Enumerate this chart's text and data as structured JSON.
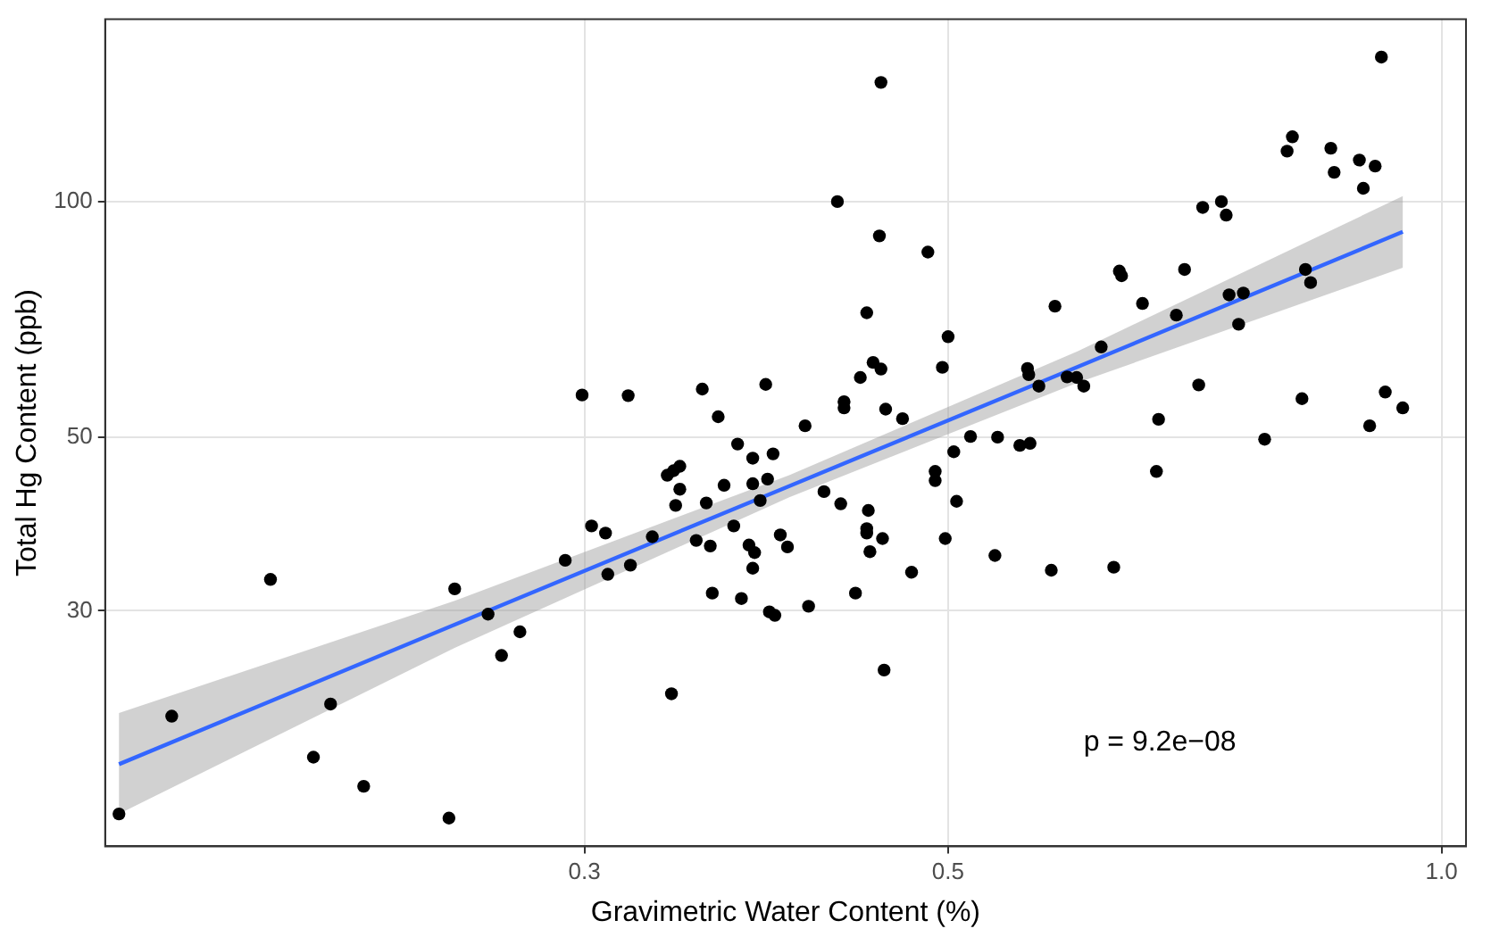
{
  "chart_data": {
    "type": "scatter",
    "xlabel": "Gravimetric Water Content (%)",
    "ylabel": "Total Hg Content (ppb)",
    "annotations": [
      "p = 9.2e−08"
    ],
    "log": "xy",
    "grid": true,
    "legend": false,
    "xlim": [
      0.153,
      1.035
    ],
    "xticks": [
      0.3,
      0.5,
      {
        "value": 1,
        "label": "1.0"
      }
    ],
    "ylim": [
      15,
      171
    ],
    "yticks": [
      30,
      50,
      100
    ],
    "series": [
      {
        "color": "#000000",
        "marker": "circle",
        "x": [
          0.156,
          0.168,
          0.193,
          0.21,
          0.205,
          0.22,
          0.248,
          0.25,
          0.262,
          0.267,
          0.274,
          0.292,
          0.299,
          0.303,
          0.309,
          0.31,
          0.319,
          0.32,
          0.33,
          0.339,
          0.337,
          0.34,
          0.343,
          0.343,
          0.341,
          0.351,
          0.354,
          0.356,
          0.358,
          0.359,
          0.362,
          0.365,
          0.37,
          0.372,
          0.374,
          0.38,
          0.38,
          0.378,
          0.381,
          0.38,
          0.384,
          0.387,
          0.388,
          0.391,
          0.389,
          0.392,
          0.395,
          0.399,
          0.411,
          0.409,
          0.42,
          0.428,
          0.43,
          0.432,
          0.432,
          0.439,
          0.442,
          0.446,
          0.447,
          0.446,
          0.448,
          0.446,
          0.45,
          0.454,
          0.455,
          0.455,
          0.457,
          0.458,
          0.456,
          0.469,
          0.475,
          0.486,
          0.491,
          0.491,
          0.496,
          0.5,
          0.498,
          0.504,
          0.506,
          0.516,
          0.534,
          0.536,
          0.553,
          0.561,
          0.559,
          0.56,
          0.568,
          0.578,
          0.581,
          0.591,
          0.599,
          0.605,
          0.62,
          0.631,
          0.636,
          0.638,
          0.657,
          0.67,
          0.672,
          0.689,
          0.697,
          0.711,
          0.715,
          0.734,
          0.739,
          0.742,
          0.752,
          0.757,
          0.78,
          0.805,
          0.811,
          0.822,
          0.826,
          0.832,
          0.856,
          0.86,
          0.891,
          0.896,
          0.904,
          0.911,
          0.919,
          0.924,
          0.947
        ],
        "values": [
          16.5,
          22.0,
          32.9,
          22.8,
          19.5,
          17.9,
          16.3,
          32.0,
          29.7,
          26.3,
          28.2,
          34.8,
          56.6,
          38.5,
          37.7,
          33.4,
          56.5,
          34.3,
          37.3,
          23.5,
          44.7,
          45.3,
          45.9,
          42.9,
          40.9,
          36.9,
          57.6,
          41.2,
          36.3,
          31.6,
          53.1,
          43.4,
          38.5,
          49.0,
          31.1,
          47.0,
          43.6,
          36.4,
          35.6,
          34.0,
          41.5,
          58.4,
          44.2,
          47.6,
          29.9,
          29.6,
          37.5,
          36.2,
          30.4,
          51.7,
          42.6,
          100,
          41.1,
          54.5,
          55.5,
          31.6,
          59.6,
          72.1,
          40.3,
          37.7,
          35.7,
          38.2,
          62.3,
          90.4,
          142,
          61.1,
          25.2,
          54.3,
          37.1,
          52.8,
          33.6,
          86.2,
          44.0,
          45.2,
          61.4,
          67.2,
          37.1,
          47.9,
          41.4,
          50.1,
          35.3,
          50.0,
          48.8,
          49.1,
          61.2,
          60.1,
          58.1,
          33.8,
          73.5,
          59.7,
          59.6,
          58.1,
          65.2,
          34.1,
          81.5,
          80.4,
          74.1,
          45.2,
          52.7,
          71.6,
          81.9,
          58.3,
          98.3,
          100,
          96.1,
          76.0,
          69.7,
          76.4,
          49.7,
          116,
          121,
          56.0,
          81.9,
          78.8,
          117,
          109,
          113,
          104,
          51.7,
          111,
          153,
          57.1,
          54.5
        ]
      },
      {
        "type": "line",
        "color": "#3366ff",
        "marker": "none",
        "x": [
          0.156,
          0.25,
          0.4,
          0.6,
          0.947
        ],
        "values": [
          19.1,
          28.8,
          43.3,
          61.5,
          91.5
        ],
        "lower": [
          16.5,
          26.9,
          41.9,
          58.7,
          82.3
        ],
        "upper": [
          22.2,
          30.9,
          44.7,
          64.4,
          101.6
        ]
      }
    ]
  }
}
